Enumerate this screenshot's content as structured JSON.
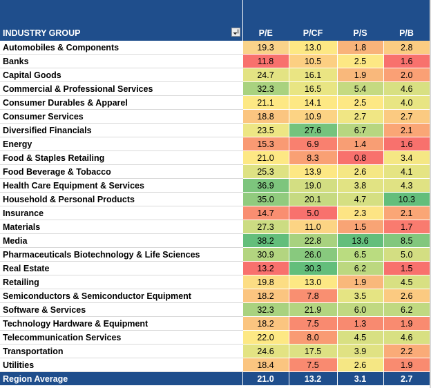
{
  "header": {
    "industry_label": "INDUSTRY GROUP",
    "columns": [
      "P/E",
      "P/CF",
      "P/S",
      "P/B"
    ]
  },
  "rows": [
    {
      "name": "Automobiles & Components",
      "values": [
        "19.3",
        "13.0",
        "1.8",
        "2.8"
      ],
      "colors": [
        "#f9d38a",
        "#fde884",
        "#f9b37a",
        "#fbcc82"
      ]
    },
    {
      "name": "Banks",
      "values": [
        "11.8",
        "10.5",
        "2.5",
        "1.6"
      ],
      "colors": [
        "#f8716d",
        "#fccf82",
        "#fde884",
        "#f8716d"
      ]
    },
    {
      "name": "Capital Goods",
      "values": [
        "24.7",
        "16.1",
        "1.9",
        "2.0"
      ],
      "colors": [
        "#e3e383",
        "#eae583",
        "#f9b87b",
        "#faa075"
      ]
    },
    {
      "name": "Commercial & Professional Services",
      "values": [
        "32.3",
        "16.5",
        "5.4",
        "4.6"
      ],
      "colors": [
        "#a9d27f",
        "#e8e583",
        "#c5da81",
        "#d8e082"
      ]
    },
    {
      "name": "Consumer Durables & Apparel",
      "values": [
        "21.1",
        "14.1",
        "2.5",
        "4.0"
      ],
      "colors": [
        "#fde884",
        "#fde884",
        "#fde884",
        "#e8e583"
      ]
    },
    {
      "name": "Consumer Services",
      "values": [
        "18.8",
        "10.9",
        "2.7",
        "2.7"
      ],
      "colors": [
        "#fbc580",
        "#fcd384",
        "#f0e684",
        "#fbca81"
      ]
    },
    {
      "name": "Diversified Financials",
      "values": [
        "23.5",
        "27.6",
        "6.7",
        "2.1"
      ],
      "colors": [
        "#ede684",
        "#75c37d",
        "#b7d680",
        "#faa676"
      ]
    },
    {
      "name": "Energy",
      "values": [
        "15.3",
        "6.9",
        "1.4",
        "1.6"
      ],
      "colors": [
        "#f99a73",
        "#f9806f",
        "#f89e74",
        "#f8716d"
      ]
    },
    {
      "name": "Food & Staples Retailing",
      "values": [
        "21.0",
        "8.3",
        "0.8",
        "3.4"
      ],
      "colors": [
        "#fde884",
        "#f9a074",
        "#f8716d",
        "#f5e784"
      ]
    },
    {
      "name": "Food Beverage & Tobacco",
      "values": [
        "25.3",
        "13.9",
        "2.6",
        "4.1"
      ],
      "colors": [
        "#dee283",
        "#fde884",
        "#f5e784",
        "#e5e483"
      ]
    },
    {
      "name": "Health Care Equipment & Services",
      "values": [
        "36.9",
        "19.0",
        "3.8",
        "4.3"
      ],
      "colors": [
        "#7dc57d",
        "#d3de82",
        "#e1e383",
        "#e0e283"
      ]
    },
    {
      "name": "Household & Personal Products",
      "values": [
        "35.0",
        "20.1",
        "4.7",
        "10.3"
      ],
      "colors": [
        "#91cb7e",
        "#c6da81",
        "#d5df82",
        "#63be7b"
      ]
    },
    {
      "name": "Insurance",
      "values": [
        "14.7",
        "5.0",
        "2.3",
        "2.1"
      ],
      "colors": [
        "#f98e71",
        "#f8716d",
        "#fde484",
        "#faa676"
      ]
    },
    {
      "name": "Materials",
      "values": [
        "27.3",
        "11.0",
        "1.5",
        "1.7"
      ],
      "colors": [
        "#ccdc82",
        "#fcd484",
        "#f8a475",
        "#f97b6f"
      ]
    },
    {
      "name": "Media",
      "values": [
        "38.2",
        "22.8",
        "13.6",
        "8.5"
      ],
      "colors": [
        "#63be7b",
        "#a8d27f",
        "#63be7b",
        "#82c77d"
      ]
    },
    {
      "name": "Pharmaceuticals Biotechnology & Life Sciences",
      "values": [
        "30.9",
        "26.0",
        "6.5",
        "5.0"
      ],
      "colors": [
        "#b3d580",
        "#88c97e",
        "#badc80",
        "#d3de82"
      ]
    },
    {
      "name": "Real Estate",
      "values": [
        "13.2",
        "30.3",
        "6.2",
        "1.5"
      ],
      "colors": [
        "#f8716d",
        "#63be7b",
        "#bcd880",
        "#f8716d"
      ]
    },
    {
      "name": "Retailing",
      "values": [
        "19.8",
        "13.0",
        "1.9",
        "4.5"
      ],
      "colors": [
        "#fcdd84",
        "#fde884",
        "#f9b87b",
        "#d8e082"
      ]
    },
    {
      "name": "Semiconductors & Semiconductor Equipment",
      "values": [
        "18.2",
        "7.8",
        "3.5",
        "2.6"
      ],
      "colors": [
        "#fbc580",
        "#f98f71",
        "#e5e483",
        "#fbca81"
      ]
    },
    {
      "name": "Software & Services",
      "values": [
        "32.3",
        "21.9",
        "6.0",
        "6.2"
      ],
      "colors": [
        "#a9d27f",
        "#b3d580",
        "#c0d981",
        "#c0d981"
      ]
    },
    {
      "name": "Technology Hardware & Equipment",
      "values": [
        "18.2",
        "7.5",
        "1.3",
        "1.9"
      ],
      "colors": [
        "#fbc580",
        "#f98a70",
        "#f88a70",
        "#f98b70"
      ]
    },
    {
      "name": "Telecommunication Services",
      "values": [
        "22.0",
        "8.0",
        "4.5",
        "4.6"
      ],
      "colors": [
        "#fde884",
        "#f99b73",
        "#d8e082",
        "#d8e082"
      ]
    },
    {
      "name": "Transportation",
      "values": [
        "24.6",
        "17.5",
        "3.9",
        "2.2"
      ],
      "colors": [
        "#e3e383",
        "#dde183",
        "#e0e283",
        "#faab78"
      ]
    },
    {
      "name": "Utilities",
      "values": [
        "18.4",
        "7.5",
        "2.6",
        "1.9"
      ],
      "colors": [
        "#fbc580",
        "#f98a70",
        "#f5e784",
        "#f98b70"
      ]
    }
  ],
  "footer": {
    "label": "Region Average",
    "values": [
      "21.0",
      "13.2",
      "3.1",
      "2.7"
    ]
  },
  "colors": {
    "header_bg": "#1f4e8c",
    "header_text": "#ffffff"
  }
}
